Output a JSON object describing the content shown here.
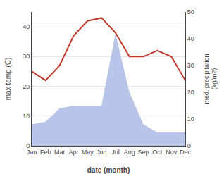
{
  "chart_data": {
    "type": "line",
    "categories": [
      "Jan",
      "Feb",
      "Mar",
      "Apr",
      "May",
      "Jun",
      "Jul",
      "Aug",
      "Sep",
      "Oct",
      "Nov",
      "Dec"
    ],
    "series": [
      {
        "type": "area",
        "color": "#b8c4e8",
        "axis": "y2",
        "values": [
          8,
          9,
          14,
          15,
          15,
          15,
          42,
          20,
          8,
          5,
          5,
          5
        ]
      },
      {
        "type": "line",
        "color": "#c0392b",
        "values": [
          25,
          22,
          27,
          37,
          42,
          43,
          38,
          30,
          30,
          32,
          30,
          22
        ]
      }
    ],
    "xlabel": "date (month)",
    "ylabel": "max temp (C)",
    "y2label": "med. precipitation\n(kg/m2)",
    "ylim": [
      0,
      45
    ],
    "yticks": [
      0,
      10,
      20,
      30,
      40
    ],
    "y2lim": [
      0,
      50
    ],
    "y2ticks": [
      0,
      10,
      20,
      30,
      40,
      50
    ],
    "grid": true
  }
}
